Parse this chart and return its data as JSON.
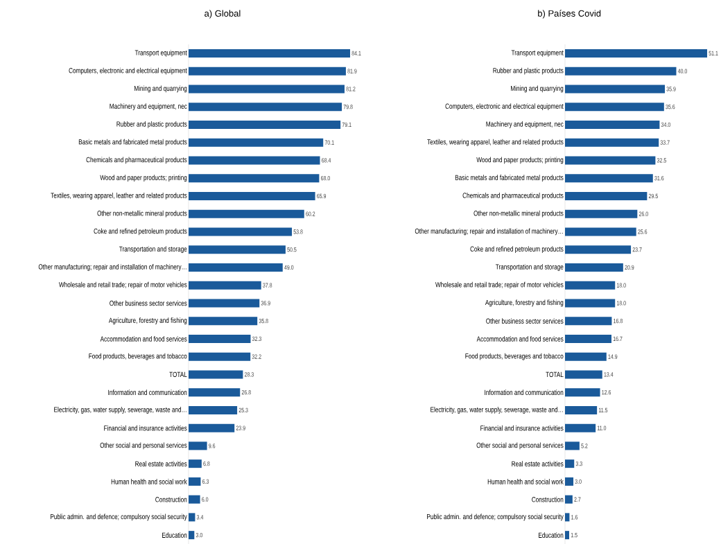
{
  "chart_data": [
    {
      "type": "bar",
      "orientation": "horizontal",
      "title": "a) Global",
      "color": "#1a5a9a",
      "categories": [
        "Transport equipment",
        "Computers, electronic and electrical equipment",
        "Mining and quarrying",
        "Machinery and equipment, nec",
        "Rubber and plastic products",
        "Basic metals and fabricated metal products",
        "Chemicals and pharmaceutical products",
        "Wood and paper products; printing",
        "Textiles, wearing apparel, leather and related products",
        "Other non-metallic mineral products",
        "Coke and refined petroleum products",
        "Transportation and storage",
        "Other manufacturing; repair and installation of machinery…",
        "Wholesale and retail trade; repair of motor vehicles",
        "Other business sector services",
        "Agriculture, forestry and fishing",
        "Accommodation and food services",
        "Food products, beverages and tobacco",
        "TOTAL",
        "Information and communication",
        "Electricity, gas, water supply, sewerage, waste and…",
        "Financial and insurance activities",
        "Other social and personal services",
        "Real estate activities",
        "Human health and social work",
        "Construction",
        "Public admin. and defence; compulsory social security",
        "Education"
      ],
      "values": [
        84.1,
        81.9,
        81.2,
        79.8,
        79.1,
        70.1,
        68.4,
        68.0,
        65.9,
        60.2,
        53.8,
        50.5,
        49.0,
        37.8,
        36.9,
        35.8,
        32.3,
        32.2,
        28.3,
        26.8,
        25.3,
        23.9,
        9.6,
        6.8,
        6.3,
        6.0,
        3.4,
        3.0
      ],
      "value_labels": [
        "84.1",
        "81.9",
        "81.2",
        "79.8",
        "79.1",
        "70.1",
        "68.4",
        "68.0",
        "65.9",
        "60.2",
        "53.8",
        "50.5",
        "49.0",
        "37.8",
        "36.9",
        "35.8",
        "32.3",
        "32.2",
        "28.3",
        "26.8",
        "25.3",
        "23.9",
        "9.6",
        "6.8",
        "6.3",
        "6.0",
        "3.4",
        "3.0"
      ]
    },
    {
      "type": "bar",
      "orientation": "horizontal",
      "title": "b) Países Covid",
      "color": "#1a5a9a",
      "categories": [
        "Transport equipment",
        "Rubber and plastic products",
        "Mining and quarrying",
        "Computers, electronic and electrical equipment",
        "Machinery and equipment, nec",
        "Textiles, wearing apparel, leather and related products",
        "Wood and paper products; printing",
        "Basic metals and fabricated metal products",
        "Chemicals and pharmaceutical products",
        "Other non-metallic mineral products",
        "Other manufacturing; repair and installation of machinery…",
        "Coke and refined petroleum products",
        "Transportation and storage",
        "Wholesale and retail trade; repair of motor vehicles",
        "Agriculture, forestry and fishing",
        "Other business sector services",
        "Accommodation and food services",
        "Food products, beverages and tobacco",
        "TOTAL",
        "Information and communication",
        "Electricity, gas, water supply, sewerage, waste and…",
        "Financial and insurance activities",
        "Other social and personal services",
        "Real estate activities",
        "Human health and social work",
        "Construction",
        "Public admin. and defence; compulsory social security",
        "Education"
      ],
      "values": [
        51.1,
        40.0,
        35.9,
        35.6,
        34.0,
        33.7,
        32.5,
        31.6,
        29.5,
        26.0,
        25.6,
        23.7,
        20.9,
        18.0,
        18.0,
        16.8,
        16.7,
        14.9,
        13.4,
        12.6,
        11.5,
        11.0,
        5.2,
        3.3,
        3.0,
        2.7,
        1.6,
        1.5
      ],
      "value_labels": [
        "51.1",
        "40.0",
        "35.9",
        "35.6",
        "34.0",
        "33.7",
        "32.5",
        "31.6",
        "29.5",
        "26.0",
        "25.6",
        "23.7",
        "20.9",
        "18.0",
        "18.0",
        "16.8",
        "16.7",
        "14.9",
        "13.4",
        "12.6",
        "11.5",
        "11.0",
        "5.2",
        "3.3",
        "3.0",
        "2.7",
        "1.6",
        "1.5"
      ]
    }
  ]
}
